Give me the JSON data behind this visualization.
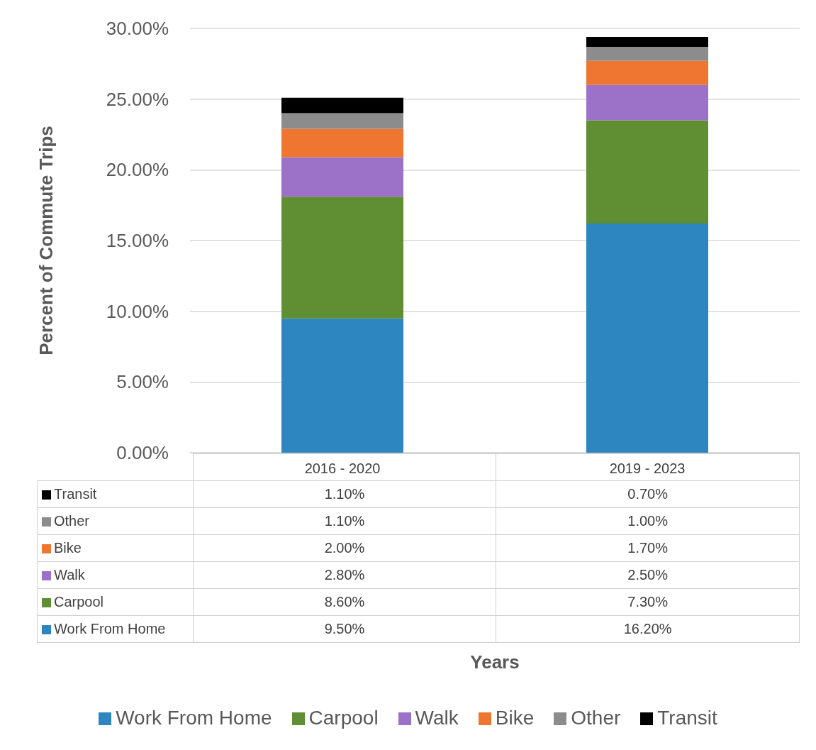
{
  "chart_data": {
    "type": "bar",
    "stacked": true,
    "annotations": [
      "Years"
    ],
    "ylabel": "Percent of Commute Trips",
    "categories": [
      "2016 - 2020",
      "2019 - 2023"
    ],
    "series": [
      {
        "name": "Work From Home",
        "color": "#2e86c1",
        "values": [
          9.5,
          16.2
        ],
        "value_labels": [
          "9.50%",
          "16.20%"
        ]
      },
      {
        "name": "Carpool",
        "color": "#5f8f32",
        "values": [
          8.6,
          7.3
        ],
        "value_labels": [
          "8.60%",
          "7.30%"
        ]
      },
      {
        "name": "Walk",
        "color": "#9b72c8",
        "values": [
          2.8,
          2.5
        ],
        "value_labels": [
          "2.80%",
          "2.50%"
        ]
      },
      {
        "name": "Bike",
        "color": "#ee7630",
        "values": [
          2.0,
          1.7
        ],
        "value_labels": [
          "2.00%",
          "1.70%"
        ]
      },
      {
        "name": "Other",
        "color": "#8c8c8c",
        "values": [
          1.1,
          1.0
        ],
        "value_labels": [
          "1.10%",
          "1.00%"
        ]
      },
      {
        "name": "Transit",
        "color": "#000000",
        "values": [
          1.1,
          0.7
        ],
        "value_labels": [
          "1.10%",
          "0.70%"
        ]
      }
    ],
    "ylim": [
      0,
      30
    ],
    "yticks": [
      {
        "value": 0,
        "label": "0.00%"
      },
      {
        "value": 5,
        "label": "5.00%"
      },
      {
        "value": 10,
        "label": "10.00%"
      },
      {
        "value": 15,
        "label": "15.00%"
      },
      {
        "value": 20,
        "label": "20.00%"
      },
      {
        "value": 25,
        "label": "25.00%"
      },
      {
        "value": 30,
        "label": "30.00%"
      }
    ],
    "grid": "y",
    "legend": "bottom"
  }
}
